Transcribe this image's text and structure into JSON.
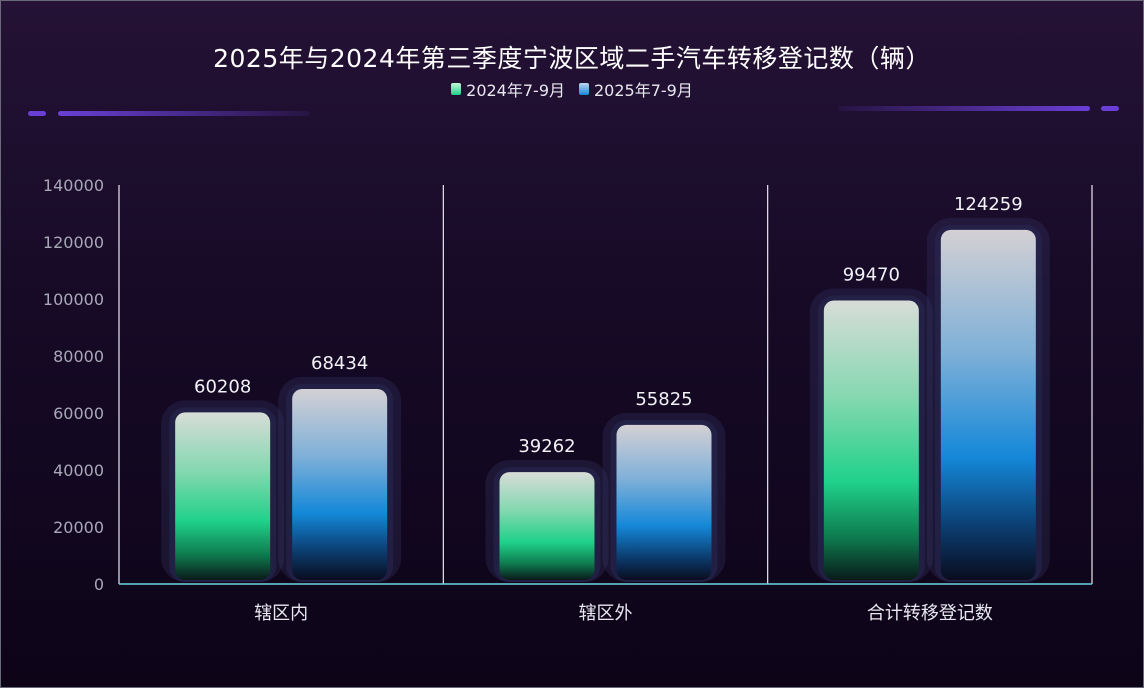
{
  "chart_data": {
    "type": "bar",
    "title": "2025年与2024年第三季度宁波区域二手汽车转移登记数（辆）",
    "categories": [
      "辖区内",
      "辖区外",
      "合计转移登记数"
    ],
    "series": [
      {
        "name": "2024年7-9月",
        "values": [
          60208,
          39262,
          99470
        ],
        "color": "#1fd18a"
      },
      {
        "name": "2025年7-9月",
        "values": [
          68434,
          55825,
          124259
        ],
        "color": "#1488d8"
      }
    ],
    "ylim": [
      0,
      140000
    ],
    "yticks": [
      0,
      20000,
      40000,
      60000,
      80000,
      100000,
      120000,
      140000
    ],
    "grid": false,
    "legend_position": "top-center"
  }
}
